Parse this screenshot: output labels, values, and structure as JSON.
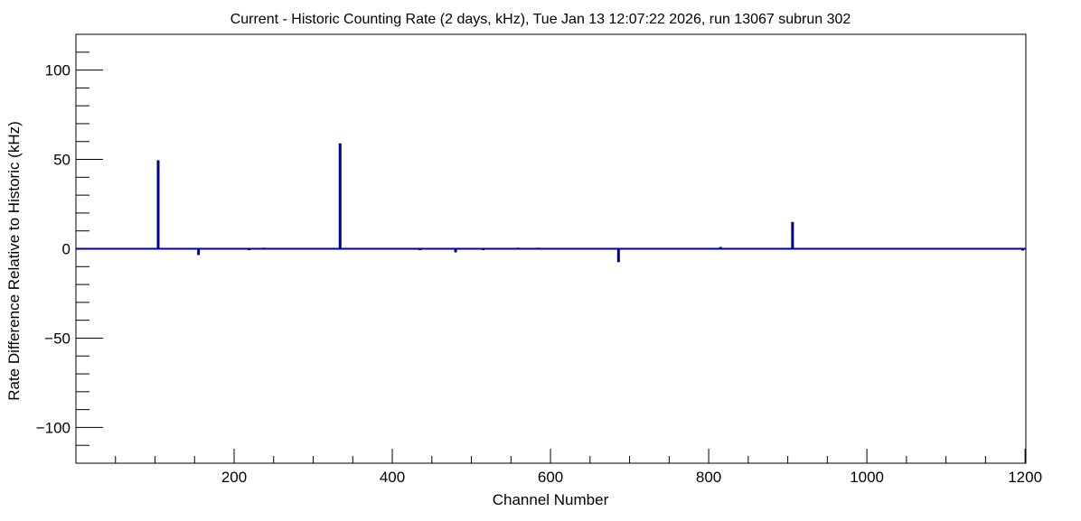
{
  "chart_data": {
    "type": "bar",
    "title": "Current - Historic Counting Rate (2 days, kHz), Tue Jan 13 12:07:22 2026, run 13067 subrun 302",
    "xlabel": "Channel Number",
    "ylabel": "Rate Difference Relative to Historic (kHz)",
    "xlim": [
      0,
      1201
    ],
    "ylim": [
      -120,
      120
    ],
    "x_ticks": [
      200,
      400,
      600,
      800,
      1000,
      1200
    ],
    "y_ticks": [
      -100,
      -50,
      0,
      50,
      100
    ],
    "x_tick_labels": [
      "200",
      "400",
      "600",
      "800",
      "1000",
      "1200"
    ],
    "y_tick_labels": [
      "−100",
      "−50",
      "0",
      "50",
      "100"
    ],
    "grid": false,
    "color": "#00008b",
    "series": [
      {
        "x": [
          59,
          104,
          139,
          155,
          219,
          237,
          334,
          351,
          435,
          480,
          515,
          559,
          584,
          686,
          815,
          906,
          977,
          1197
        ],
        "values": [
          0.5,
          49.5,
          0.5,
          -3.5,
          -0.8,
          0.6,
          59,
          0.5,
          -0.8,
          -2,
          -0.8,
          0.6,
          0.6,
          -7.5,
          1,
          15,
          0.5,
          -1
        ]
      }
    ]
  }
}
